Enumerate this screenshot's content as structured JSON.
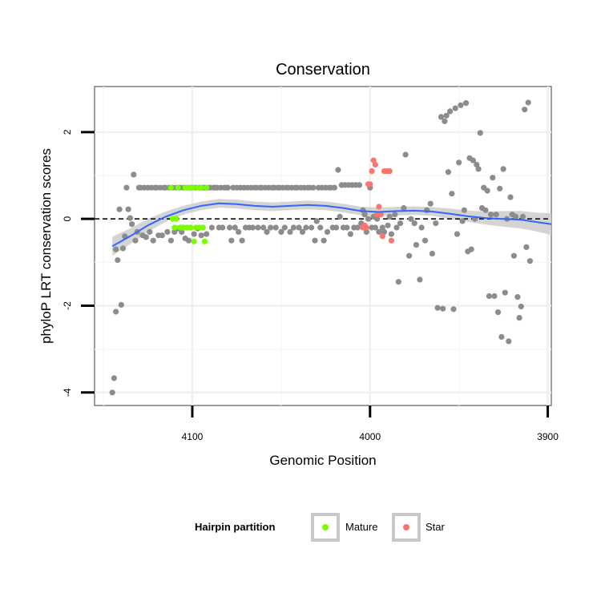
{
  "chart_data": {
    "type": "scatter",
    "title": "Conservation",
    "xlabel": "Genomic Position",
    "ylabel": "phyloP LRT conservation scores",
    "x_reversed": true,
    "xlim": [
      4155,
      3898
    ],
    "ylim": [
      -4.3,
      3.05
    ],
    "x_ticks": [
      4100,
      4000,
      3900
    ],
    "y_ticks": [
      -4,
      -2,
      0,
      2
    ],
    "x_tick_labels": [
      "4100",
      "4000",
      "3900"
    ],
    "y_tick_labels": [
      "-4",
      "-2",
      "0",
      "2"
    ],
    "reference_line": {
      "y": 0,
      "style": "dashed"
    },
    "legend": {
      "title": "Hairpin partition",
      "position": "bottom",
      "entries": [
        {
          "label": "Mature",
          "color": "#7cfc00"
        },
        {
          "label": "Star",
          "color": "#f8766d"
        }
      ]
    },
    "colors": {
      "other": "#8c8c8c",
      "mature": "#7cfc00",
      "star": "#f8766d",
      "smooth": "#3366ff",
      "ribbon": "#cccccc"
    },
    "smooth_curve": {
      "x": [
        4145,
        4135,
        4125,
        4115,
        4105,
        4095,
        4085,
        4075,
        4065,
        4055,
        4045,
        4035,
        4025,
        4015,
        4005,
        3995,
        3985,
        3975,
        3965,
        3955,
        3945,
        3935,
        3925,
        3915,
        3905,
        3898
      ],
      "y": [
        -0.63,
        -0.4,
        -0.15,
        0.05,
        0.2,
        0.3,
        0.36,
        0.34,
        0.3,
        0.28,
        0.3,
        0.32,
        0.3,
        0.25,
        0.18,
        0.16,
        0.18,
        0.19,
        0.17,
        0.12,
        0.06,
        0.02,
        0.0,
        -0.02,
        -0.08,
        -0.12
      ],
      "se": [
        0.22,
        0.18,
        0.15,
        0.12,
        0.1,
        0.1,
        0.1,
        0.1,
        0.1,
        0.1,
        0.1,
        0.1,
        0.1,
        0.1,
        0.1,
        0.1,
        0.1,
        0.1,
        0.1,
        0.12,
        0.13,
        0.15,
        0.18,
        0.2,
        0.22,
        0.25
      ]
    },
    "series": [
      {
        "name": "Other",
        "points": [
          [
            4145,
            -4.0
          ],
          [
            4144,
            -3.67
          ],
          [
            4143,
            -2.14
          ],
          [
            4142,
            -0.95
          ],
          [
            4143,
            -0.7
          ],
          [
            4141,
            0.22
          ],
          [
            4140,
            -1.98
          ],
          [
            4139,
            -0.68
          ],
          [
            4138,
            -0.4
          ],
          [
            4137,
            0.72
          ],
          [
            4136,
            0.22
          ],
          [
            4135,
            0.02
          ],
          [
            4134,
            -0.12
          ],
          [
            4133,
            1.02
          ],
          [
            4132,
            -0.5
          ],
          [
            4131,
            -0.3
          ],
          [
            4130,
            0.72
          ],
          [
            4129,
            0.72
          ],
          [
            4128,
            -0.38
          ],
          [
            4127,
            0.72
          ],
          [
            4126,
            -0.42
          ],
          [
            4125,
            0.72
          ],
          [
            4124,
            -0.3
          ],
          [
            4123,
            0.72
          ],
          [
            4122,
            -0.5
          ],
          [
            4121,
            0.72
          ],
          [
            4120,
            0.72
          ],
          [
            4119,
            -0.38
          ],
          [
            4118,
            0.72
          ],
          [
            4117,
            -0.38
          ],
          [
            4116,
            0.72
          ],
          [
            4115,
            0.72
          ],
          [
            4114,
            -0.3
          ],
          [
            4113,
            0.72
          ],
          [
            4112,
            -0.5
          ],
          [
            4111,
            0.72
          ],
          [
            4110,
            -0.3
          ],
          [
            4109,
            0.72
          ],
          [
            4108,
            -0.22
          ],
          [
            4107,
            0.72
          ],
          [
            4106,
            -0.3
          ],
          [
            4105,
            0.72
          ],
          [
            4104,
            -0.45
          ],
          [
            4103,
            0.72
          ],
          [
            4102,
            -0.5
          ],
          [
            4101,
            0.72
          ],
          [
            4100,
            0.72
          ],
          [
            4099,
            -0.35
          ],
          [
            4098,
            0.72
          ],
          [
            4097,
            -0.22
          ],
          [
            4096,
            0.72
          ],
          [
            4095,
            -0.38
          ],
          [
            4094,
            0.72
          ],
          [
            4093,
            0.72
          ],
          [
            4092,
            -0.35
          ],
          [
            4091,
            0.72
          ],
          [
            4090,
            0.72
          ],
          [
            4089,
            -0.2
          ],
          [
            4088,
            0.72
          ],
          [
            4087,
            0.72
          ],
          [
            4086,
            0.72
          ],
          [
            4085,
            -0.2
          ],
          [
            4084,
            0.72
          ],
          [
            4083,
            -0.2
          ],
          [
            4082,
            0.72
          ],
          [
            4081,
            0.72
          ],
          [
            4080,
            0.72
          ],
          [
            4079,
            -0.2
          ],
          [
            4078,
            -0.5
          ],
          [
            4077,
            0.72
          ],
          [
            4076,
            -0.2
          ],
          [
            4075,
            0.72
          ],
          [
            4074,
            -0.3
          ],
          [
            4073,
            0.72
          ],
          [
            4072,
            -0.5
          ],
          [
            4071,
            0.72
          ],
          [
            4070,
            -0.2
          ],
          [
            4069,
            0.72
          ],
          [
            4068,
            -0.2
          ],
          [
            4067,
            0.72
          ],
          [
            4066,
            -0.2
          ],
          [
            4065,
            0.72
          ],
          [
            4064,
            0.72
          ],
          [
            4063,
            -0.2
          ],
          [
            4062,
            0.72
          ],
          [
            4061,
            0.72
          ],
          [
            4060,
            -0.2
          ],
          [
            4059,
            0.72
          ],
          [
            4058,
            -0.3
          ],
          [
            4057,
            0.72
          ],
          [
            4056,
            -0.2
          ],
          [
            4055,
            0.72
          ],
          [
            4054,
            0.72
          ],
          [
            4053,
            -0.2
          ],
          [
            4052,
            0.72
          ],
          [
            4051,
            0.72
          ],
          [
            4050,
            -0.3
          ],
          [
            4049,
            0.72
          ],
          [
            4048,
            -0.2
          ],
          [
            4047,
            0.72
          ],
          [
            4046,
            0.72
          ],
          [
            4045,
            -0.3
          ],
          [
            4044,
            0.72
          ],
          [
            4043,
            -0.2
          ],
          [
            4042,
            0.72
          ],
          [
            4041,
            0.72
          ],
          [
            4040,
            -0.2
          ],
          [
            4039,
            0.72
          ],
          [
            4038,
            -0.3
          ],
          [
            4037,
            0.72
          ],
          [
            4036,
            -0.2
          ],
          [
            4035,
            0.72
          ],
          [
            4034,
            0.72
          ],
          [
            4033,
            -0.2
          ],
          [
            4032,
            0.72
          ],
          [
            4031,
            -0.5
          ],
          [
            4030,
            -0.05
          ],
          [
            4029,
            0.72
          ],
          [
            4028,
            -0.2
          ],
          [
            4027,
            0.72
          ],
          [
            4026,
            -0.5
          ],
          [
            4025,
            0.72
          ],
          [
            4024,
            -0.3
          ],
          [
            4023,
            0.72
          ],
          [
            4022,
            0.72
          ],
          [
            4021,
            -0.2
          ],
          [
            4020,
            0.72
          ],
          [
            4019,
            -0.2
          ],
          [
            4018,
            1.13
          ],
          [
            4017,
            0.05
          ],
          [
            4016,
            0.78
          ],
          [
            4015,
            -0.2
          ],
          [
            4014,
            0.78
          ],
          [
            4013,
            -0.2
          ],
          [
            4012,
            0.78
          ],
          [
            4011,
            -0.35
          ],
          [
            4010,
            0.78
          ],
          [
            4009,
            -0.2
          ],
          [
            4008,
            0.78
          ],
          [
            4007,
            -0.2
          ],
          [
            4006,
            0.78
          ],
          [
            4005,
            -0.1
          ],
          [
            4004,
            0.2
          ],
          [
            4003,
            0.1
          ],
          [
            4002,
            -0.3
          ],
          [
            4001,
            0.0
          ],
          [
            4000,
            0.72
          ],
          [
            3999,
            -0.2
          ],
          [
            3998,
            0.05
          ],
          [
            3997,
            -0.2
          ],
          [
            3996,
            0.0
          ],
          [
            3995,
            -0.3
          ],
          [
            3994,
            0.1
          ],
          [
            3993,
            -0.2
          ],
          [
            3992,
            -0.3
          ],
          [
            3990,
            -0.15
          ],
          [
            3989,
            0.05
          ],
          [
            3988,
            -0.35
          ],
          [
            3986,
            0.1
          ],
          [
            3985,
            -0.2
          ],
          [
            3984,
            -1.45
          ],
          [
            3983,
            -0.1
          ],
          [
            3981,
            0.25
          ],
          [
            3980,
            1.48
          ],
          [
            3978,
            -0.85
          ],
          [
            3977,
            0.0
          ],
          [
            3975,
            -0.1
          ],
          [
            3974,
            -0.6
          ],
          [
            3972,
            -1.4
          ],
          [
            3971,
            -0.2
          ],
          [
            3969,
            -0.5
          ],
          [
            3968,
            0.2
          ],
          [
            3966,
            0.35
          ],
          [
            3965,
            -0.8
          ],
          [
            3963,
            -0.1
          ],
          [
            3962,
            -2.05
          ],
          [
            3960,
            2.35
          ],
          [
            3959,
            -2.07
          ],
          [
            3958,
            2.25
          ],
          [
            3957,
            2.38
          ],
          [
            3956,
            1.08
          ],
          [
            3955,
            2.48
          ],
          [
            3954,
            0.58
          ],
          [
            3953,
            -2.08
          ],
          [
            3952,
            2.55
          ],
          [
            3951,
            -0.35
          ],
          [
            3950,
            1.3
          ],
          [
            3949,
            2.62
          ],
          [
            3948,
            -0.05
          ],
          [
            3947,
            0.2
          ],
          [
            3946,
            2.67
          ],
          [
            3945,
            -0.75
          ],
          [
            3944,
            1.4
          ],
          [
            3943,
            -0.7
          ],
          [
            3942,
            1.35
          ],
          [
            3941,
            0.0
          ],
          [
            3940,
            1.25
          ],
          [
            3939,
            1.15
          ],
          [
            3938,
            1.98
          ],
          [
            3937,
            0.25
          ],
          [
            3936,
            0.72
          ],
          [
            3935,
            0.2
          ],
          [
            3934,
            0.65
          ],
          [
            3933,
            -1.78
          ],
          [
            3932,
            0.1
          ],
          [
            3931,
            0.95
          ],
          [
            3930,
            -1.78
          ],
          [
            3929,
            0.1
          ],
          [
            3928,
            -2.15
          ],
          [
            3927,
            0.7
          ],
          [
            3926,
            -2.72
          ],
          [
            3925,
            1.15
          ],
          [
            3924,
            -1.7
          ],
          [
            3923,
            0.0
          ],
          [
            3922,
            -2.82
          ],
          [
            3921,
            0.5
          ],
          [
            3920,
            0.1
          ],
          [
            3919,
            -0.85
          ],
          [
            3918,
            0.05
          ],
          [
            3917,
            -1.8
          ],
          [
            3916,
            -2.28
          ],
          [
            3915,
            -2.02
          ],
          [
            3914,
            0.05
          ],
          [
            3913,
            2.52
          ],
          [
            3912,
            -0.65
          ],
          [
            3911,
            2.68
          ],
          [
            3910,
            -0.97
          ]
        ]
      },
      {
        "name": "Mature",
        "points": [
          [
            4112,
            0.72
          ],
          [
            4111,
            0.0
          ],
          [
            4110,
            -0.2
          ],
          [
            4109,
            0.0
          ],
          [
            4108,
            0.72
          ],
          [
            4107,
            -0.2
          ],
          [
            4106,
            -0.2
          ],
          [
            4105,
            -0.2
          ],
          [
            4104,
            0.72
          ],
          [
            4103,
            -0.2
          ],
          [
            4102,
            0.72
          ],
          [
            4101,
            -0.2
          ],
          [
            4100,
            0.72
          ],
          [
            4099,
            -0.52
          ],
          [
            4098,
            -0.2
          ],
          [
            4097,
            0.72
          ],
          [
            4096,
            -0.2
          ],
          [
            4095,
            0.72
          ],
          [
            4094,
            -0.2
          ],
          [
            4093,
            -0.52
          ],
          [
            4092,
            0.72
          ]
        ]
      },
      {
        "name": "Star",
        "points": [
          [
            4004,
            -0.2
          ],
          [
            4003,
            -0.15
          ],
          [
            4002,
            -0.2
          ],
          [
            4001,
            0.8
          ],
          [
            4000,
            0.8
          ],
          [
            3999,
            1.1
          ],
          [
            3998,
            1.35
          ],
          [
            3997,
            1.25
          ],
          [
            3996,
            0.1
          ],
          [
            3995,
            0.28
          ],
          [
            3994,
            0.1
          ],
          [
            3993,
            -0.4
          ],
          [
            3992,
            1.1
          ],
          [
            3991,
            1.1
          ],
          [
            3990,
            1.1
          ],
          [
            3989,
            1.1
          ],
          [
            3988,
            -0.5
          ]
        ]
      }
    ]
  }
}
